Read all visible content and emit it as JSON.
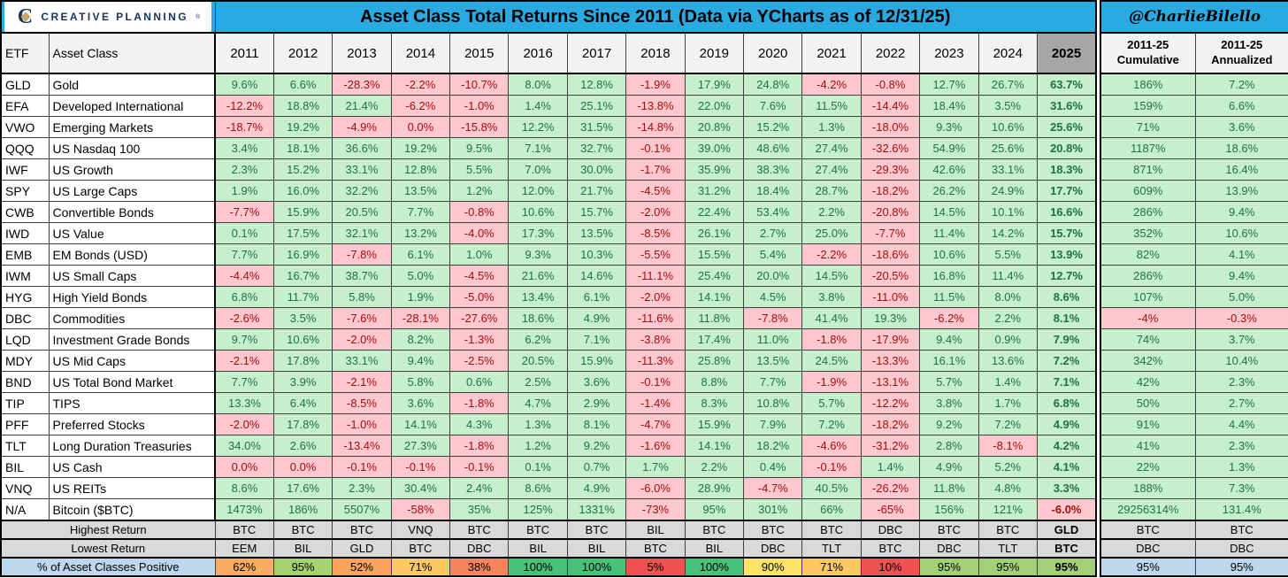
{
  "chart_data": {
    "type": "table",
    "brand": "CREATIVE PLANNING",
    "brand_initial": "C",
    "brand_reg": "®",
    "title": "Asset Class Total Returns Since 2011 (Data via YCharts as of 12/31/25)",
    "attribution": "@CharlieBilello",
    "etf_header": "ETF",
    "asset_class_header": "Asset Class",
    "year_headers": [
      "2011",
      "2012",
      "2013",
      "2014",
      "2015",
      "2016",
      "2017",
      "2018",
      "2019",
      "2020",
      "2021",
      "2022",
      "2023",
      "2024",
      "2025"
    ],
    "cumulative_header": "2011-25 Cumulative",
    "annualized_header": "2011-25 Annualized",
    "rows": [
      {
        "etf": "GLD",
        "name": "Gold",
        "values": [
          "9.6%",
          "6.6%",
          "-28.3%",
          "-2.2%",
          "-10.7%",
          "8.0%",
          "12.8%",
          "-1.9%",
          "17.9%",
          "24.8%",
          "-4.2%",
          "-0.8%",
          "12.7%",
          "26.7%",
          "63.7%"
        ],
        "cumulative": "186%",
        "annualized": "7.2%"
      },
      {
        "etf": "EFA",
        "name": "Developed International",
        "values": [
          "-12.2%",
          "18.8%",
          "21.4%",
          "-6.2%",
          "-1.0%",
          "1.4%",
          "25.1%",
          "-13.8%",
          "22.0%",
          "7.6%",
          "11.5%",
          "-14.4%",
          "18.4%",
          "3.5%",
          "31.6%"
        ],
        "cumulative": "159%",
        "annualized": "6.6%"
      },
      {
        "etf": "VWO",
        "name": "Emerging Markets",
        "values": [
          "-18.7%",
          "19.2%",
          "-4.9%",
          "0.0%",
          "-15.8%",
          "12.2%",
          "31.5%",
          "-14.8%",
          "20.8%",
          "15.2%",
          "1.3%",
          "-18.0%",
          "9.3%",
          "10.6%",
          "25.6%"
        ],
        "cumulative": "71%",
        "annualized": "3.6%"
      },
      {
        "etf": "QQQ",
        "name": "US Nasdaq 100",
        "values": [
          "3.4%",
          "18.1%",
          "36.6%",
          "19.2%",
          "9.5%",
          "7.1%",
          "32.7%",
          "-0.1%",
          "39.0%",
          "48.6%",
          "27.4%",
          "-32.6%",
          "54.9%",
          "25.6%",
          "20.8%"
        ],
        "cumulative": "1187%",
        "annualized": "18.6%"
      },
      {
        "etf": "IWF",
        "name": "US Growth",
        "values": [
          "2.3%",
          "15.2%",
          "33.1%",
          "12.8%",
          "5.5%",
          "7.0%",
          "30.0%",
          "-1.7%",
          "35.9%",
          "38.3%",
          "27.4%",
          "-29.3%",
          "42.6%",
          "33.1%",
          "18.3%"
        ],
        "cumulative": "871%",
        "annualized": "16.4%"
      },
      {
        "etf": "SPY",
        "name": "US Large Caps",
        "values": [
          "1.9%",
          "16.0%",
          "32.2%",
          "13.5%",
          "1.2%",
          "12.0%",
          "21.7%",
          "-4.5%",
          "31.2%",
          "18.4%",
          "28.7%",
          "-18.2%",
          "26.2%",
          "24.9%",
          "17.7%"
        ],
        "cumulative": "609%",
        "annualized": "13.9%"
      },
      {
        "etf": "CWB",
        "name": "Convertible Bonds",
        "values": [
          "-7.7%",
          "15.9%",
          "20.5%",
          "7.7%",
          "-0.8%",
          "10.6%",
          "15.7%",
          "-2.0%",
          "22.4%",
          "53.4%",
          "2.2%",
          "-20.8%",
          "14.5%",
          "10.1%",
          "16.6%"
        ],
        "cumulative": "286%",
        "annualized": "9.4%"
      },
      {
        "etf": "IWD",
        "name": "US Value",
        "values": [
          "0.1%",
          "17.5%",
          "32.1%",
          "13.2%",
          "-4.0%",
          "17.3%",
          "13.5%",
          "-8.5%",
          "26.1%",
          "2.7%",
          "25.0%",
          "-7.7%",
          "11.4%",
          "14.2%",
          "15.7%"
        ],
        "cumulative": "352%",
        "annualized": "10.6%"
      },
      {
        "etf": "EMB",
        "name": "EM Bonds (USD)",
        "values": [
          "7.7%",
          "16.9%",
          "-7.8%",
          "6.1%",
          "1.0%",
          "9.3%",
          "10.3%",
          "-5.5%",
          "15.5%",
          "5.4%",
          "-2.2%",
          "-18.6%",
          "10.6%",
          "5.5%",
          "13.9%"
        ],
        "cumulative": "82%",
        "annualized": "4.1%"
      },
      {
        "etf": "IWM",
        "name": "US Small Caps",
        "values": [
          "-4.4%",
          "16.7%",
          "38.7%",
          "5.0%",
          "-4.5%",
          "21.6%",
          "14.6%",
          "-11.1%",
          "25.4%",
          "20.0%",
          "14.5%",
          "-20.5%",
          "16.8%",
          "11.4%",
          "12.7%"
        ],
        "cumulative": "286%",
        "annualized": "9.4%"
      },
      {
        "etf": "HYG",
        "name": "High Yield Bonds",
        "values": [
          "6.8%",
          "11.7%",
          "5.8%",
          "1.9%",
          "-5.0%",
          "13.4%",
          "6.1%",
          "-2.0%",
          "14.1%",
          "4.5%",
          "3.8%",
          "-11.0%",
          "11.5%",
          "8.0%",
          "8.6%"
        ],
        "cumulative": "107%",
        "annualized": "5.0%"
      },
      {
        "etf": "DBC",
        "name": "Commodities",
        "values": [
          "-2.6%",
          "3.5%",
          "-7.6%",
          "-28.1%",
          "-27.6%",
          "18.6%",
          "4.9%",
          "-11.6%",
          "11.8%",
          "-7.8%",
          "41.4%",
          "19.3%",
          "-6.2%",
          "2.2%",
          "8.1%"
        ],
        "cumulative": "-4%",
        "annualized": "-0.3%"
      },
      {
        "etf": "LQD",
        "name": "Investment Grade Bonds",
        "values": [
          "9.7%",
          "10.6%",
          "-2.0%",
          "8.2%",
          "-1.3%",
          "6.2%",
          "7.1%",
          "-3.8%",
          "17.4%",
          "11.0%",
          "-1.8%",
          "-17.9%",
          "9.4%",
          "0.9%",
          "7.9%"
        ],
        "cumulative": "74%",
        "annualized": "3.7%"
      },
      {
        "etf": "MDY",
        "name": "US Mid Caps",
        "values": [
          "-2.1%",
          "17.8%",
          "33.1%",
          "9.4%",
          "-2.5%",
          "20.5%",
          "15.9%",
          "-11.3%",
          "25.8%",
          "13.5%",
          "24.5%",
          "-13.3%",
          "16.1%",
          "13.6%",
          "7.2%"
        ],
        "cumulative": "342%",
        "annualized": "10.4%"
      },
      {
        "etf": "BND",
        "name": "US Total Bond Market",
        "values": [
          "7.7%",
          "3.9%",
          "-2.1%",
          "5.8%",
          "0.6%",
          "2.5%",
          "3.6%",
          "-0.1%",
          "8.8%",
          "7.7%",
          "-1.9%",
          "-13.1%",
          "5.7%",
          "1.4%",
          "7.1%"
        ],
        "cumulative": "42%",
        "annualized": "2.3%"
      },
      {
        "etf": "TIP",
        "name": "TIPS",
        "values": [
          "13.3%",
          "6.4%",
          "-8.5%",
          "3.6%",
          "-1.8%",
          "4.7%",
          "2.9%",
          "-1.4%",
          "8.3%",
          "10.8%",
          "5.7%",
          "-12.2%",
          "3.8%",
          "1.7%",
          "6.8%"
        ],
        "cumulative": "50%",
        "annualized": "2.7%"
      },
      {
        "etf": "PFF",
        "name": "Preferred Stocks",
        "values": [
          "-2.0%",
          "17.8%",
          "-1.0%",
          "14.1%",
          "4.3%",
          "1.3%",
          "8.1%",
          "-4.7%",
          "15.9%",
          "7.9%",
          "7.2%",
          "-18.2%",
          "9.2%",
          "7.2%",
          "4.9%"
        ],
        "cumulative": "91%",
        "annualized": "4.4%"
      },
      {
        "etf": "TLT",
        "name": "Long Duration Treasuries",
        "values": [
          "34.0%",
          "2.6%",
          "-13.4%",
          "27.3%",
          "-1.8%",
          "1.2%",
          "9.2%",
          "-1.6%",
          "14.1%",
          "18.2%",
          "-4.6%",
          "-31.2%",
          "2.8%",
          "-8.1%",
          "4.2%"
        ],
        "cumulative": "41%",
        "annualized": "2.3%"
      },
      {
        "etf": "BIL",
        "name": "US Cash",
        "values": [
          "0.0%",
          "0.0%",
          "-0.1%",
          "-0.1%",
          "-0.1%",
          "0.1%",
          "0.7%",
          "1.7%",
          "2.2%",
          "0.4%",
          "-0.1%",
          "1.4%",
          "4.9%",
          "5.2%",
          "4.1%"
        ],
        "cumulative": "22%",
        "annualized": "1.3%"
      },
      {
        "etf": "VNQ",
        "name": "US REITs",
        "values": [
          "8.6%",
          "17.6%",
          "2.3%",
          "30.4%",
          "2.4%",
          "8.6%",
          "4.9%",
          "-6.0%",
          "28.9%",
          "-4.7%",
          "40.5%",
          "-26.2%",
          "11.8%",
          "4.8%",
          "3.3%"
        ],
        "cumulative": "188%",
        "annualized": "7.3%"
      },
      {
        "etf": "N/A",
        "name": "Bitcoin ($BTC)",
        "values": [
          "1473%",
          "186%",
          "5507%",
          "-58%",
          "35%",
          "125%",
          "1331%",
          "-73%",
          "95%",
          "301%",
          "66%",
          "-65%",
          "156%",
          "121%",
          "-6.0%"
        ],
        "cumulative": "29256314%",
        "annualized": "131.4%"
      }
    ],
    "summary_rows": [
      {
        "label": "Highest Return",
        "values": [
          "BTC",
          "BTC",
          "BTC",
          "VNQ",
          "BTC",
          "BTC",
          "BTC",
          "BIL",
          "BTC",
          "BTC",
          "BTC",
          "DBC",
          "BTC",
          "BTC",
          "GLD"
        ],
        "cumulative": "BTC",
        "annualized": "BTC"
      },
      {
        "label": "Lowest Return",
        "values": [
          "EEM",
          "BIL",
          "GLD",
          "BTC",
          "DBC",
          "BIL",
          "BIL",
          "BTC",
          "BIL",
          "DBC",
          "TLT",
          "BTC",
          "DBC",
          "TLT",
          "BTC"
        ],
        "cumulative": "DBC",
        "annualized": "DBC"
      },
      {
        "label": "% of Asset Classes Positive",
        "values": [
          "62%",
          "95%",
          "52%",
          "71%",
          "38%",
          "100%",
          "100%",
          "5%",
          "100%",
          "90%",
          "71%",
          "10%",
          "95%",
          "95%",
          "95%"
        ],
        "cumulative": "95%",
        "annualized": "95%"
      }
    ],
    "pct_positive_colors": [
      "#F9AC60",
      "#A2D36F",
      "#F9A35C",
      "#FBC862",
      "#F6845C",
      "#48C17B",
      "#48C17B",
      "#F0534F",
      "#48C17B",
      "#FBE367",
      "#FBC862",
      "#F0534F",
      "#A3D077",
      "#A3D077",
      "#A3D077"
    ],
    "colors": {
      "header_cyan": "#29ABE2",
      "positive_bg": "#C6EFCE",
      "positive_text": "#1E7145",
      "negative_bg": "#FFC7CE",
      "negative_text": "#A50E0E",
      "year2025_header_bg": "#A6A6A6",
      "column_header_bg": "#F2F2F2",
      "summary_gray_bg": "#D9D9D9",
      "pct_label_blue_bg": "#BDD7EE",
      "logo_navy": "#16355B",
      "logo_gold": "#C9A86A"
    }
  }
}
